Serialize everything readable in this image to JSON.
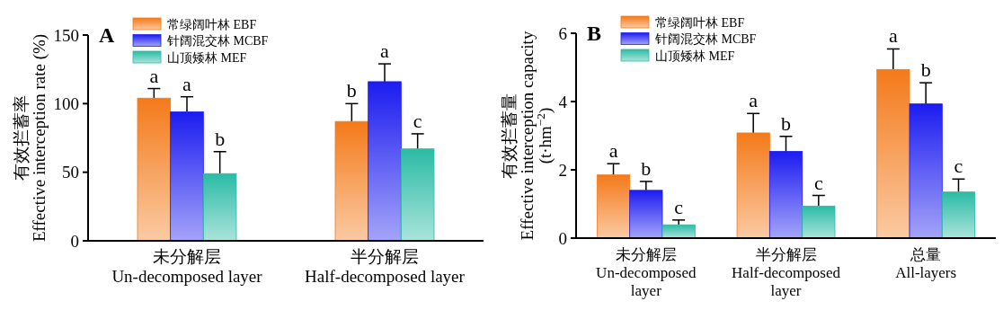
{
  "chart_data": [
    {
      "type": "bar",
      "title": "A",
      "ylabel": "有效拦蓄率\nEffective interception rate (%)",
      "categories": [
        "未分解层\nUn-decomposed layer",
        "半分解层\nHalf-decomposed layer"
      ],
      "series": [
        {
          "name": "常绿阔叶林 EBF",
          "color": "#f47a1a",
          "values": [
            104,
            87
          ],
          "errors": [
            [
              104,
              111
            ],
            [
              87,
              100
            ]
          ]
        },
        {
          "name": "针阔混交林 MCBF",
          "color": "#1c1cf0",
          "values": [
            94,
            116
          ],
          "errors": [
            [
              94,
              105
            ],
            [
              116,
              129
            ]
          ]
        },
        {
          "name": "山顶矮林 MEF",
          "color": "#2bbba6",
          "values": [
            49,
            67
          ],
          "errors": [
            [
              49,
              65
            ],
            [
              67,
              78
            ]
          ]
        }
      ],
      "ylim": [
        0,
        150
      ],
      "yticks": [
        0,
        50,
        100,
        150
      ],
      "grid": false,
      "legend": "top left",
      "annotations": [
        "a",
        "a",
        "b",
        "b",
        "a",
        "c"
      ]
    },
    {
      "type": "bar",
      "title": "B",
      "ylabel": "有效拦蓄量\nEffective interception capacity\n(t·hm$^{−2}$)",
      "categories": [
        "未分解层\nUn-decomposed\nlayer",
        "半分解层\nHalf-decomposed\nlayer",
        "总量\nAll-layers"
      ],
      "series": [
        {
          "name": "常绿阔叶林 EBF",
          "color": "#f47a1a",
          "values": [
            1.85,
            3.08,
            4.94
          ],
          "errors": [
            [
              1.85,
              2.18
            ],
            [
              3.08,
              3.65
            ],
            [
              4.94,
              5.54
            ]
          ]
        },
        {
          "name": "针阔混交林 MCBF",
          "color": "#1c1cf0",
          "values": [
            1.4,
            2.54,
            3.93
          ],
          "errors": [
            [
              1.4,
              1.66
            ],
            [
              2.54,
              2.98
            ],
            [
              3.93,
              4.55
            ]
          ]
        },
        {
          "name": "山顶矮林 MEF",
          "color": "#2bbba6",
          "values": [
            0.39,
            0.94,
            1.35
          ],
          "errors": [
            [
              0.39,
              0.53
            ],
            [
              0.94,
              1.25
            ],
            [
              1.35,
              1.73
            ]
          ]
        }
      ],
      "ylim": [
        0,
        6
      ],
      "yticks": [
        0,
        2,
        4,
        6
      ],
      "grid": false,
      "legend": "top left",
      "annotations": [
        "a",
        "b",
        "c",
        "a",
        "b",
        "c",
        "a",
        "b",
        "c"
      ]
    }
  ]
}
